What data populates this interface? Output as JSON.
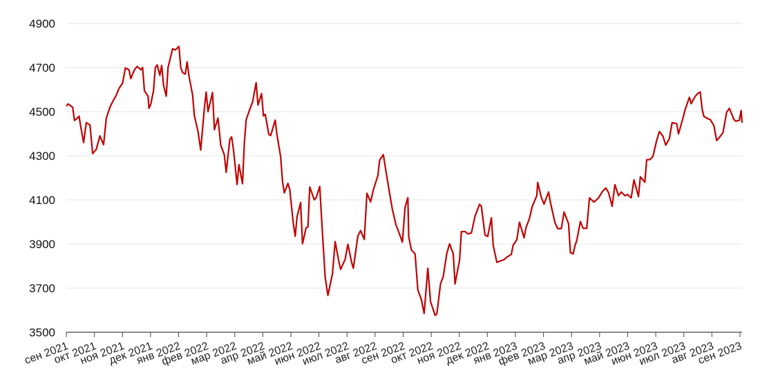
{
  "chart_data": {
    "type": "line",
    "title": "",
    "xlabel": "",
    "ylabel": "",
    "ylim": [
      3500,
      4900
    ],
    "y_ticks": [
      3500,
      3700,
      3900,
      4100,
      4300,
      4500,
      4700,
      4900
    ],
    "grid": true,
    "colors": {
      "line": "#c00000",
      "grid": "#e6e6e6",
      "axis": "#444444"
    },
    "x_tick_labels": [
      "сен 2021",
      "окт 2021",
      "ноя 2021",
      "дек 2021",
      "янв 2022",
      "фев 2022",
      "мар 2022",
      "апр 2022",
      "май 2022",
      "июн 2022",
      "июл 2022",
      "авг 2022",
      "сен 2022",
      "окт 2022",
      "ноя 2022",
      "дек 2022",
      "янв 2023",
      "фев 2023",
      "мар 2023",
      "апр 2023",
      "май 2023",
      "июн 2023",
      "июл 2023",
      "авг 2023",
      "сен 2023"
    ],
    "x_range": [
      "2021-09-01",
      "2023-09-15"
    ],
    "series": [
      {
        "points": [
          [
            "2021-09-01",
            4525
          ],
          [
            "2021-09-03",
            4535
          ],
          [
            "2021-09-08",
            4520
          ],
          [
            "2021-09-10",
            4460
          ],
          [
            "2021-09-13",
            4470
          ],
          [
            "2021-09-15",
            4480
          ],
          [
            "2021-09-17",
            4430
          ],
          [
            "2021-09-20",
            4360
          ],
          [
            "2021-09-23",
            4450
          ],
          [
            "2021-09-27",
            4440
          ],
          [
            "2021-09-30",
            4310
          ],
          [
            "2021-10-04",
            4330
          ],
          [
            "2021-10-06",
            4360
          ],
          [
            "2021-10-08",
            4390
          ],
          [
            "2021-10-12",
            4350
          ],
          [
            "2021-10-15",
            4470
          ],
          [
            "2021-10-19",
            4520
          ],
          [
            "2021-10-22",
            4545
          ],
          [
            "2021-10-26",
            4575
          ],
          [
            "2021-10-29",
            4605
          ],
          [
            "2021-11-02",
            4630
          ],
          [
            "2021-11-05",
            4698
          ],
          [
            "2021-11-09",
            4690
          ],
          [
            "2021-11-11",
            4650
          ],
          [
            "2021-11-15",
            4690
          ],
          [
            "2021-11-18",
            4705
          ],
          [
            "2021-11-22",
            4690
          ],
          [
            "2021-11-24",
            4700
          ],
          [
            "2021-11-26",
            4595
          ],
          [
            "2021-11-30",
            4570
          ],
          [
            "2021-12-01",
            4515
          ],
          [
            "2021-12-03",
            4535
          ],
          [
            "2021-12-06",
            4595
          ],
          [
            "2021-12-08",
            4700
          ],
          [
            "2021-12-10",
            4712
          ],
          [
            "2021-12-13",
            4665
          ],
          [
            "2021-12-15",
            4710
          ],
          [
            "2021-12-17",
            4620
          ],
          [
            "2021-12-20",
            4570
          ],
          [
            "2021-12-22",
            4700
          ],
          [
            "2021-12-27",
            4785
          ],
          [
            "2021-12-30",
            4780
          ],
          [
            "2022-01-03",
            4796
          ],
          [
            "2022-01-05",
            4700
          ],
          [
            "2022-01-07",
            4677
          ],
          [
            "2022-01-10",
            4670
          ],
          [
            "2022-01-12",
            4726
          ],
          [
            "2022-01-14",
            4662
          ],
          [
            "2022-01-18",
            4577
          ],
          [
            "2022-01-20",
            4482
          ],
          [
            "2022-01-24",
            4410
          ],
          [
            "2022-01-27",
            4326
          ],
          [
            "2022-01-31",
            4515
          ],
          [
            "2022-02-02",
            4589
          ],
          [
            "2022-02-04",
            4500
          ],
          [
            "2022-02-09",
            4587
          ],
          [
            "2022-02-11",
            4418
          ],
          [
            "2022-02-15",
            4471
          ],
          [
            "2022-02-18",
            4348
          ],
          [
            "2022-02-22",
            4304
          ],
          [
            "2022-02-24",
            4225
          ],
          [
            "2022-02-28",
            4373
          ],
          [
            "2022-03-02",
            4386
          ],
          [
            "2022-03-04",
            4328
          ],
          [
            "2022-03-08",
            4170
          ],
          [
            "2022-03-10",
            4260
          ],
          [
            "2022-03-14",
            4173
          ],
          [
            "2022-03-16",
            4357
          ],
          [
            "2022-03-18",
            4463
          ],
          [
            "2022-03-22",
            4511
          ],
          [
            "2022-03-25",
            4543
          ],
          [
            "2022-03-29",
            4631
          ],
          [
            "2022-03-31",
            4530
          ],
          [
            "2022-04-04",
            4582
          ],
          [
            "2022-04-06",
            4481
          ],
          [
            "2022-04-08",
            4488
          ],
          [
            "2022-04-12",
            4397
          ],
          [
            "2022-04-14",
            4392
          ],
          [
            "2022-04-19",
            4462
          ],
          [
            "2022-04-21",
            4393
          ],
          [
            "2022-04-25",
            4296
          ],
          [
            "2022-04-27",
            4183
          ],
          [
            "2022-04-29",
            4132
          ],
          [
            "2022-05-03",
            4175
          ],
          [
            "2022-05-05",
            4147
          ],
          [
            "2022-05-09",
            3991
          ],
          [
            "2022-05-11",
            3935
          ],
          [
            "2022-05-13",
            4023
          ],
          [
            "2022-05-17",
            4088
          ],
          [
            "2022-05-19",
            3901
          ],
          [
            "2022-05-23",
            3973
          ],
          [
            "2022-05-25",
            3978
          ],
          [
            "2022-05-27",
            4158
          ],
          [
            "2022-06-01",
            4101
          ],
          [
            "2022-06-03",
            4109
          ],
          [
            "2022-06-07",
            4161
          ],
          [
            "2022-06-09",
            4017
          ],
          [
            "2022-06-13",
            3750
          ],
          [
            "2022-06-16",
            3667
          ],
          [
            "2022-06-21",
            3765
          ],
          [
            "2022-06-24",
            3911
          ],
          [
            "2022-06-28",
            3821
          ],
          [
            "2022-06-30",
            3785
          ],
          [
            "2022-07-05",
            3831
          ],
          [
            "2022-07-08",
            3899
          ],
          [
            "2022-07-12",
            3818
          ],
          [
            "2022-07-14",
            3790
          ],
          [
            "2022-07-19",
            3937
          ],
          [
            "2022-07-22",
            3961
          ],
          [
            "2022-07-26",
            3921
          ],
          [
            "2022-07-29",
            4130
          ],
          [
            "2022-08-02",
            4091
          ],
          [
            "2022-08-05",
            4145
          ],
          [
            "2022-08-10",
            4210
          ],
          [
            "2022-08-12",
            4280
          ],
          [
            "2022-08-16",
            4305
          ],
          [
            "2022-08-19",
            4228
          ],
          [
            "2022-08-23",
            4128
          ],
          [
            "2022-08-26",
            4057
          ],
          [
            "2022-08-30",
            3986
          ],
          [
            "2022-09-01",
            3966
          ],
          [
            "2022-09-06",
            3908
          ],
          [
            "2022-09-09",
            4067
          ],
          [
            "2022-09-12",
            4110
          ],
          [
            "2022-09-13",
            3932
          ],
          [
            "2022-09-16",
            3873
          ],
          [
            "2022-09-20",
            3855
          ],
          [
            "2022-09-23",
            3693
          ],
          [
            "2022-09-27",
            3647
          ],
          [
            "2022-09-30",
            3585
          ],
          [
            "2022-10-04",
            3790
          ],
          [
            "2022-10-07",
            3639
          ],
          [
            "2022-10-12",
            3577
          ],
          [
            "2022-10-14",
            3583
          ],
          [
            "2022-10-18",
            3720
          ],
          [
            "2022-10-21",
            3752
          ],
          [
            "2022-10-25",
            3859
          ],
          [
            "2022-10-28",
            3901
          ],
          [
            "2022-11-01",
            3856
          ],
          [
            "2022-11-03",
            3719
          ],
          [
            "2022-11-08",
            3828
          ],
          [
            "2022-11-10",
            3956
          ],
          [
            "2022-11-14",
            3957
          ],
          [
            "2022-11-17",
            3946
          ],
          [
            "2022-11-21",
            3950
          ],
          [
            "2022-11-25",
            4026
          ],
          [
            "2022-11-30",
            4080
          ],
          [
            "2022-12-02",
            4071
          ],
          [
            "2022-12-06",
            3941
          ],
          [
            "2022-12-09",
            3934
          ],
          [
            "2022-12-13",
            4019
          ],
          [
            "2022-12-15",
            3895
          ],
          [
            "2022-12-19",
            3817
          ],
          [
            "2022-12-22",
            3822
          ],
          [
            "2022-12-27",
            3829
          ],
          [
            "2022-12-30",
            3840
          ],
          [
            "2023-01-04",
            3853
          ],
          [
            "2023-01-06",
            3895
          ],
          [
            "2023-01-10",
            3919
          ],
          [
            "2023-01-13",
            3999
          ],
          [
            "2023-01-18",
            3928
          ],
          [
            "2023-01-20",
            3972
          ],
          [
            "2023-01-24",
            4017
          ],
          [
            "2023-01-27",
            4070
          ],
          [
            "2023-02-01",
            4119
          ],
          [
            "2023-02-02",
            4179
          ],
          [
            "2023-02-06",
            4111
          ],
          [
            "2023-02-09",
            4081
          ],
          [
            "2023-02-14",
            4136
          ],
          [
            "2023-02-16",
            4090
          ],
          [
            "2023-02-21",
            3997
          ],
          [
            "2023-02-24",
            3970
          ],
          [
            "2023-02-28",
            3970
          ],
          [
            "2023-03-03",
            4045
          ],
          [
            "2023-03-08",
            3992
          ],
          [
            "2023-03-10",
            3861
          ],
          [
            "2023-03-13",
            3855
          ],
          [
            "2023-03-15",
            3891
          ],
          [
            "2023-03-17",
            3916
          ],
          [
            "2023-03-21",
            4002
          ],
          [
            "2023-03-24",
            3971
          ],
          [
            "2023-03-28",
            3971
          ],
          [
            "2023-03-31",
            4109
          ],
          [
            "2023-04-05",
            4090
          ],
          [
            "2023-04-10",
            4109
          ],
          [
            "2023-04-14",
            4137
          ],
          [
            "2023-04-18",
            4154
          ],
          [
            "2023-04-21",
            4133
          ],
          [
            "2023-04-25",
            4071
          ],
          [
            "2023-04-28",
            4169
          ],
          [
            "2023-05-02",
            4119
          ],
          [
            "2023-05-05",
            4136
          ],
          [
            "2023-05-09",
            4119
          ],
          [
            "2023-05-12",
            4124
          ],
          [
            "2023-05-16",
            4109
          ],
          [
            "2023-05-19",
            4191
          ],
          [
            "2023-05-24",
            4115
          ],
          [
            "2023-05-26",
            4205
          ],
          [
            "2023-05-31",
            4180
          ],
          [
            "2023-06-02",
            4282
          ],
          [
            "2023-06-06",
            4283
          ],
          [
            "2023-06-09",
            4299
          ],
          [
            "2023-06-13",
            4369
          ],
          [
            "2023-06-16",
            4410
          ],
          [
            "2023-06-20",
            4388
          ],
          [
            "2023-06-23",
            4348
          ],
          [
            "2023-06-27",
            4378
          ],
          [
            "2023-06-30",
            4450
          ],
          [
            "2023-07-05",
            4446
          ],
          [
            "2023-07-07",
            4399
          ],
          [
            "2023-07-12",
            4472
          ],
          [
            "2023-07-14",
            4505
          ],
          [
            "2023-07-19",
            4565
          ],
          [
            "2023-07-21",
            4536
          ],
          [
            "2023-07-25",
            4567
          ],
          [
            "2023-07-28",
            4582
          ],
          [
            "2023-07-31",
            4589
          ],
          [
            "2023-08-02",
            4513
          ],
          [
            "2023-08-04",
            4478
          ],
          [
            "2023-08-09",
            4467
          ],
          [
            "2023-08-11",
            4464
          ],
          [
            "2023-08-15",
            4437
          ],
          [
            "2023-08-18",
            4369
          ],
          [
            "2023-08-22",
            4388
          ],
          [
            "2023-08-25",
            4405
          ],
          [
            "2023-08-29",
            4497
          ],
          [
            "2023-09-01",
            4515
          ],
          [
            "2023-09-06",
            4465
          ],
          [
            "2023-09-08",
            4457
          ],
          [
            "2023-09-12",
            4461
          ],
          [
            "2023-09-14",
            4505
          ],
          [
            "2023-09-15",
            4450
          ]
        ]
      }
    ]
  }
}
